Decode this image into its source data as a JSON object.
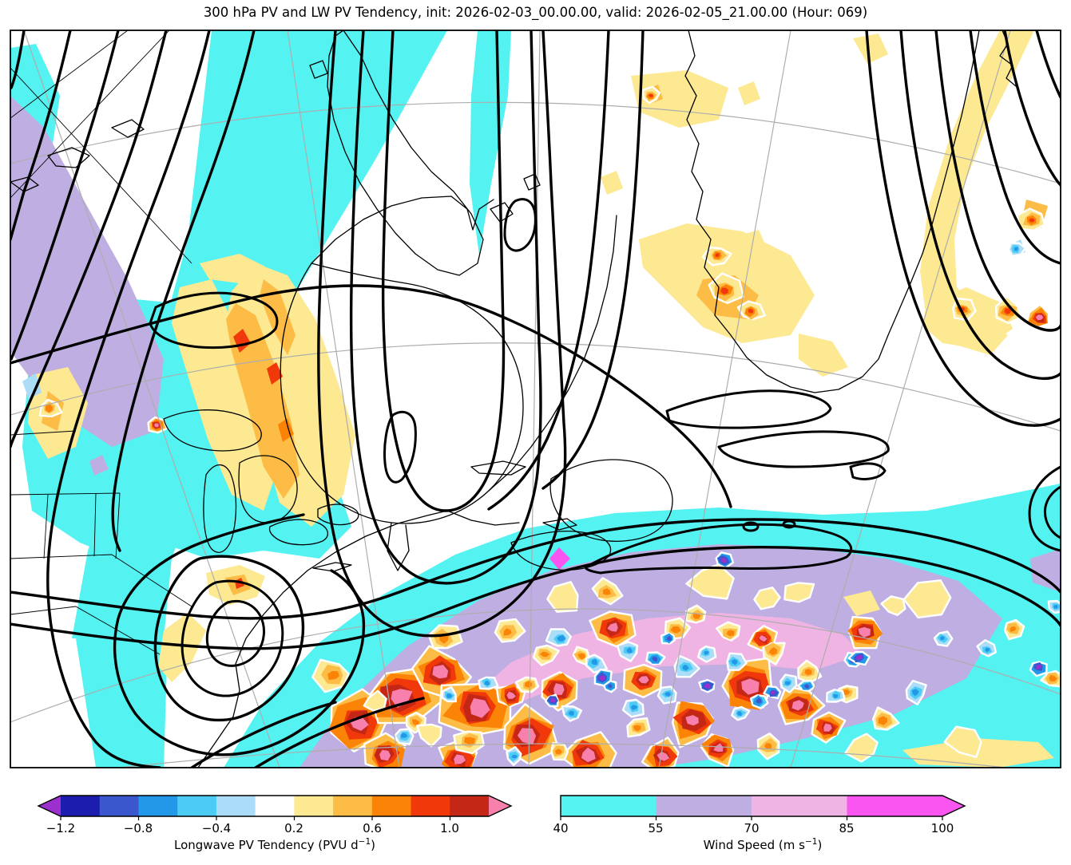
{
  "title": "300 hPa PV and LW PV Tendency, init: 2026-02-03_00.00.00, valid: 2026-02-05_21.00.00 (Hour: 069)",
  "run": {
    "level": "300 hPa",
    "init": "2026-02-03_00.00.00",
    "valid": "2026-02-05_21.00.00",
    "hour": "069"
  },
  "colorbars": {
    "pv_tendency": {
      "label_main": "Longwave PV Tendency (PVU d",
      "label_sup": "−1",
      "label_close": ")",
      "ticks": [
        "−1.2",
        "−0.8",
        "−0.4",
        "0.2",
        "0.6",
        "1.0"
      ],
      "levels": [
        -1.2,
        -1.0,
        -0.8,
        -0.6,
        -0.4,
        -0.2,
        0.2,
        0.4,
        0.6,
        0.8,
        1.0,
        1.2
      ],
      "extend": "both",
      "under_color": "#9B30CE",
      "over_color": "#F880AC",
      "segment_colors": [
        "#1C1CAE",
        "#3B57CE",
        "#2498E8",
        "#4ACCF5",
        "#ABDCF8",
        "#FFFFFF",
        "#FDE992",
        "#FCBC45",
        "#FB8305",
        "#F1380B",
        "#C52717"
      ]
    },
    "wind_speed": {
      "label_main": "Wind Speed (m s",
      "label_sup": "−1",
      "label_close": ")",
      "ticks": [
        "40",
        "55",
        "70",
        "85",
        "100"
      ],
      "levels": [
        40,
        55,
        70,
        85,
        100
      ],
      "extend": "max",
      "segment_colors": [
        "#55F2F2",
        "#BFAEE2",
        "#F0B4E4",
        "#FA55F0"
      ],
      "over_color": "#FA55F0"
    }
  },
  "map": {
    "background": "#FFFFFF",
    "frame_color": "#000000",
    "graticule_color": "#ADADAD",
    "coastline_color": "#000000",
    "pv_contour_color": "#000000"
  },
  "chart_data": {
    "type": "map-contour",
    "title": "300 hPa PV and LW PV Tendency, init: 2026-02-03_00.00.00, valid: 2026-02-05_21.00.00 (Hour: 069)",
    "region": "North America, Greenland and the western North Atlantic",
    "layers": [
      {
        "name": "300 hPa Potential Vorticity",
        "style": "thick black contour lines (troughs upper-left, centre and right; cutoff ovals near US east coast)"
      },
      {
        "name": "Longwave PV Tendency",
        "units": "PVU d−1",
        "style": "filled contours",
        "levels": [
          -1.2,
          -1.0,
          -0.8,
          -0.6,
          -0.4,
          -0.2,
          0.2,
          0.4,
          0.6,
          0.8,
          1.0,
          1.2
        ],
        "extend": "both"
      },
      {
        "name": "Wind Speed",
        "units": "m s−1",
        "style": "filled contours",
        "levels": [
          40,
          55,
          70,
          85,
          100
        ],
        "extend": "max"
      }
    ],
    "features": [
      "cyan 40–55 m s−1 jet band sweeping from upper-left down across the Great Lakes",
      "broad cyan jet band across the lower-right with lavender 55–70 m s−1 core and small 70–85 m s−1 pink streak",
      "mottled positive (yellow/orange/red/pink) and negative (blue/navy/violet) LW PV tendency cells along the Atlantic jet",
      "positive LW PV tendency streaks over Quebec, south of Greenland and inside the eastern trough band"
    ]
  }
}
